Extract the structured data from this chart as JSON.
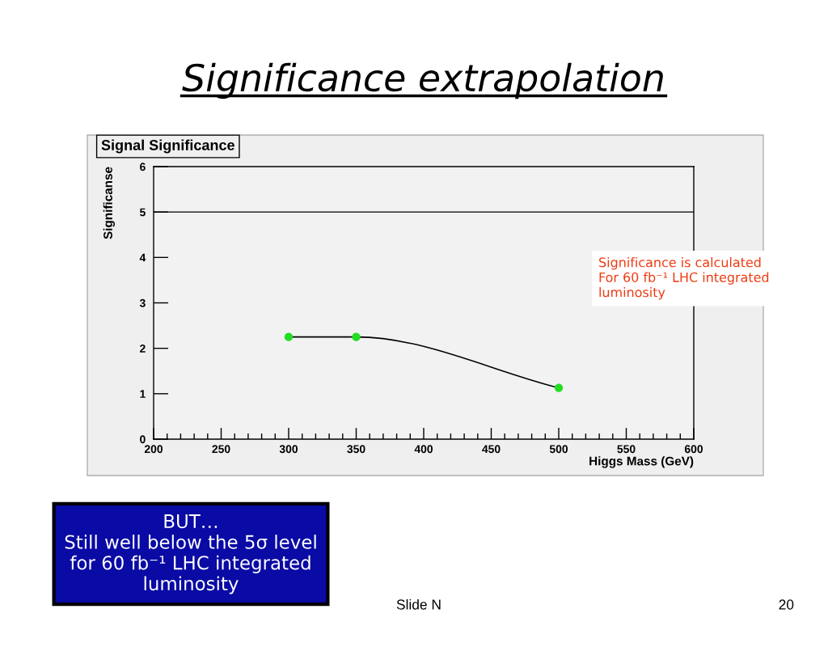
{
  "chart_data": {
    "type": "line",
    "title": "Significance extrapolation",
    "subtitle": "Signal Significance",
    "xlabel": "Higgs Mass (GeV)",
    "ylabel": "Significanse",
    "x": [
      300,
      350,
      500
    ],
    "series": [
      {
        "color": "#000000",
        "values": [
          2.25,
          2.25,
          1.13
        ]
      },
      {
        "type": "scatter",
        "marker": "circle",
        "color": "#22dd22",
        "values": [
          2.25,
          2.25,
          1.13
        ]
      }
    ],
    "xlim": [
      200,
      600
    ],
    "ylim": [
      0,
      6
    ],
    "xticks": [
      200,
      250,
      300,
      350,
      400,
      450,
      500,
      550,
      600
    ],
    "yticks": [
      0,
      1,
      2,
      3,
      4,
      5,
      6
    ],
    "ref_lines": [
      {
        "axis": "y",
        "value": 5,
        "color": "#000000"
      }
    ],
    "annotations": [
      "Significance is calculated\nFor 60 fb⁻¹ LHC integrated\nluminosity",
      "BUT…\nStill well below the 5σ level\nfor 60 fb⁻¹ LHC integrated\nluminosity",
      "Slide N",
      "20"
    ]
  }
}
